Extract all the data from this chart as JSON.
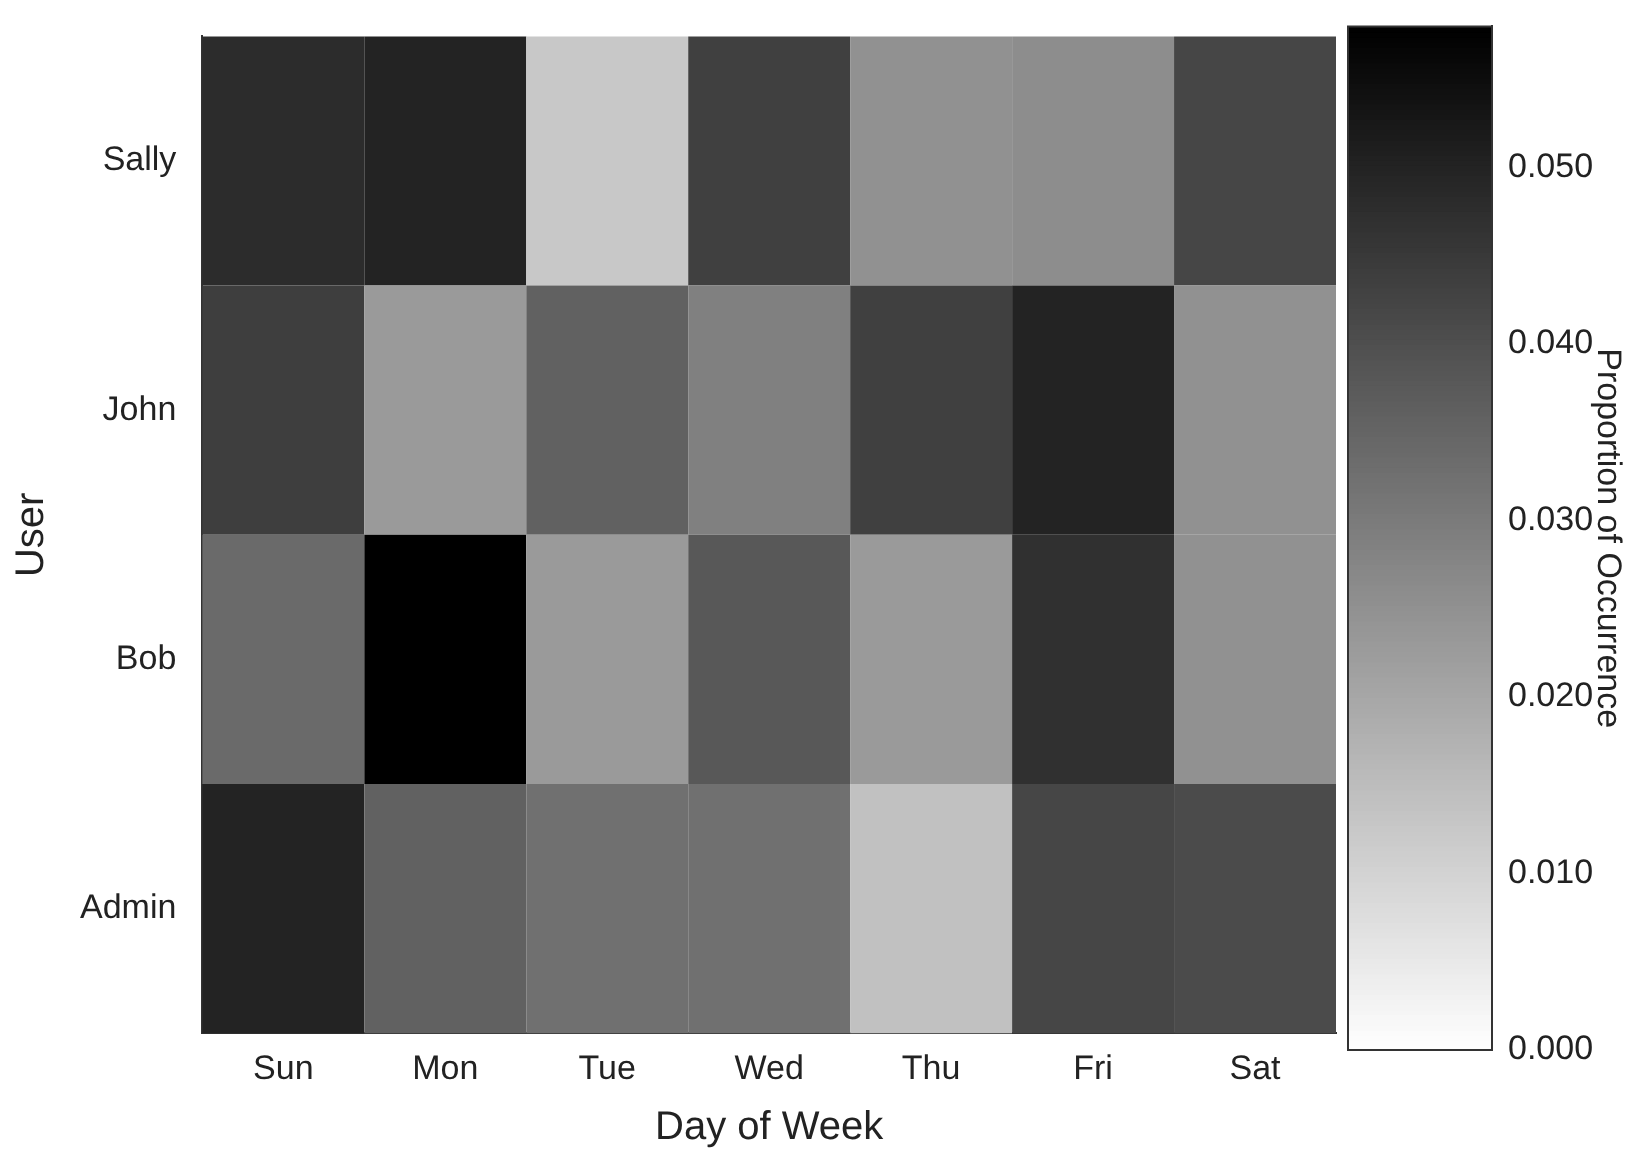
{
  "chart_data": {
    "type": "heatmap",
    "xlabel": "Day of Week",
    "ylabel": "User",
    "clabel": "Proportion of Occurrence",
    "categories": [
      "Sun",
      "Mon",
      "Tue",
      "Wed",
      "Thu",
      "Fri",
      "Sat"
    ],
    "y_categories": [
      "Sally",
      "John",
      "Bob",
      "Admin"
    ],
    "cells": [
      [
        0.048,
        0.05,
        0.0125,
        0.0435,
        0.025,
        0.026,
        0.042
      ],
      [
        0.044,
        0.023,
        0.036,
        0.029,
        0.0435,
        0.05,
        0.025
      ],
      [
        0.034,
        0.058,
        0.023,
        0.038,
        0.023,
        0.047,
        0.025
      ],
      [
        0.05,
        0.036,
        0.0325,
        0.0325,
        0.014,
        0.042,
        0.041
      ]
    ],
    "clim": [
      0,
      0.058
    ],
    "cticks": [
      {
        "value": 0,
        "label": "0.000"
      },
      {
        "value": 0.01,
        "label": "0.010"
      },
      {
        "value": 0.02,
        "label": "0.020"
      },
      {
        "value": 0.03,
        "label": "0.030"
      },
      {
        "value": 0.04,
        "label": "0.040"
      },
      {
        "value": 0.05,
        "label": "0.050"
      }
    ]
  }
}
